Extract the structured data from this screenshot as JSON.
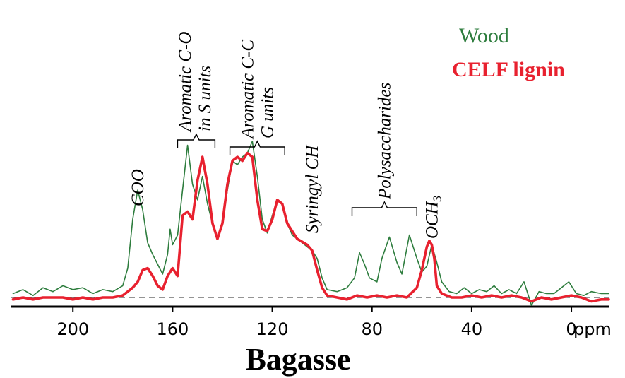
{
  "chart_data": {
    "type": "line",
    "title": "Bagasse",
    "xlabel": "ppm",
    "ylabel": "",
    "x_reversed": true,
    "xlim": [
      225,
      -15
    ],
    "ylim": [
      -0.05,
      1.05
    ],
    "baseline_dashed": true,
    "legend_position": "top-right",
    "x_ticks": [
      {
        "value": 200,
        "label": "200"
      },
      {
        "value": 160,
        "label": "160"
      },
      {
        "value": 120,
        "label": "120"
      },
      {
        "value": 80,
        "label": "80"
      },
      {
        "value": 40,
        "label": "40"
      },
      {
        "value": 0,
        "label": "0"
      }
    ],
    "annotations": [
      {
        "key": "coo",
        "text": "COO",
        "x": 174,
        "bracket": null
      },
      {
        "key": "aroS",
        "lines": [
          "Aromatic C-O",
          "in S units"
        ],
        "x": 151,
        "bracket": [
          158,
          143
        ]
      },
      {
        "key": "aroG",
        "lines": [
          "Aromatic C-C",
          "G units"
        ],
        "x": 126,
        "bracket": [
          137,
          115
        ]
      },
      {
        "key": "syr",
        "text": "Syringyl CH",
        "x": 104,
        "bracket": null
      },
      {
        "key": "poly",
        "text": "Polysaccharides",
        "x": 75,
        "bracket": [
          88,
          62
        ]
      },
      {
        "key": "och3",
        "text": "OCH3",
        "x": 56,
        "bracket": null
      }
    ],
    "series": [
      {
        "name": "Wood",
        "color": "#2e7d3e",
        "points": [
          [
            224,
            0.02
          ],
          [
            220,
            0.04
          ],
          [
            216,
            0.01
          ],
          [
            212,
            0.05
          ],
          [
            208,
            0.03
          ],
          [
            204,
            0.06
          ],
          [
            200,
            0.04
          ],
          [
            196,
            0.05
          ],
          [
            192,
            0.02
          ],
          [
            188,
            0.04
          ],
          [
            184,
            0.03
          ],
          [
            180,
            0.06
          ],
          [
            178,
            0.15
          ],
          [
            176,
            0.4
          ],
          [
            174,
            0.55
          ],
          [
            172,
            0.45
          ],
          [
            170,
            0.28
          ],
          [
            168,
            0.22
          ],
          [
            166,
            0.17
          ],
          [
            164,
            0.12
          ],
          [
            162,
            0.22
          ],
          [
            161,
            0.35
          ],
          [
            160,
            0.27
          ],
          [
            158,
            0.32
          ],
          [
            156,
            0.55
          ],
          [
            154,
            0.78
          ],
          [
            152,
            0.58
          ],
          [
            150,
            0.5
          ],
          [
            148,
            0.62
          ],
          [
            146,
            0.48
          ],
          [
            144,
            0.38
          ],
          [
            142,
            0.3
          ],
          [
            140,
            0.37
          ],
          [
            138,
            0.55
          ],
          [
            136,
            0.7
          ],
          [
            134,
            0.68
          ],
          [
            132,
            0.72
          ],
          [
            130,
            0.74
          ],
          [
            128,
            0.8
          ],
          [
            126,
            0.62
          ],
          [
            124,
            0.4
          ],
          [
            122,
            0.33
          ],
          [
            120,
            0.42
          ],
          [
            118,
            0.5
          ],
          [
            116,
            0.48
          ],
          [
            114,
            0.38
          ],
          [
            112,
            0.32
          ],
          [
            110,
            0.3
          ],
          [
            106,
            0.26
          ],
          [
            104,
            0.24
          ],
          [
            102,
            0.2
          ],
          [
            100,
            0.1
          ],
          [
            98,
            0.04
          ],
          [
            94,
            0.03
          ],
          [
            90,
            0.05
          ],
          [
            87,
            0.1
          ],
          [
            85,
            0.23
          ],
          [
            83,
            0.17
          ],
          [
            81,
            0.1
          ],
          [
            78,
            0.08
          ],
          [
            76,
            0.2
          ],
          [
            73,
            0.31
          ],
          [
            70,
            0.18
          ],
          [
            68,
            0.12
          ],
          [
            65,
            0.32
          ],
          [
            62,
            0.2
          ],
          [
            60,
            0.13
          ],
          [
            58,
            0.16
          ],
          [
            56,
            0.27
          ],
          [
            54,
            0.18
          ],
          [
            52,
            0.08
          ],
          [
            49,
            0.03
          ],
          [
            46,
            0.02
          ],
          [
            43,
            0.05
          ],
          [
            40,
            0.02
          ],
          [
            37,
            0.04
          ],
          [
            34,
            0.03
          ],
          [
            31,
            0.06
          ],
          [
            28,
            0.02
          ],
          [
            25,
            0.04
          ],
          [
            22,
            0.02
          ],
          [
            19,
            0.08
          ],
          [
            16,
            -0.04
          ],
          [
            13,
            0.03
          ],
          [
            10,
            0.02
          ],
          [
            7,
            0.02
          ],
          [
            4,
            0.05
          ],
          [
            1,
            0.08
          ],
          [
            -2,
            0.02
          ],
          [
            -5,
            0.01
          ],
          [
            -8,
            0.03
          ],
          [
            -12,
            0.02
          ],
          [
            -15,
            0.02
          ]
        ]
      },
      {
        "name": "CELF lignin",
        "color": "#e8212f",
        "points": [
          [
            224,
            -0.01
          ],
          [
            220,
            0.0
          ],
          [
            216,
            -0.01
          ],
          [
            212,
            0.0
          ],
          [
            208,
            0.0
          ],
          [
            204,
            0.0
          ],
          [
            200,
            -0.01
          ],
          [
            196,
            0.0
          ],
          [
            192,
            -0.01
          ],
          [
            188,
            0.0
          ],
          [
            184,
            0.0
          ],
          [
            180,
            0.01
          ],
          [
            176,
            0.05
          ],
          [
            174,
            0.08
          ],
          [
            172,
            0.14
          ],
          [
            170,
            0.15
          ],
          [
            168,
            0.11
          ],
          [
            166,
            0.06
          ],
          [
            164,
            0.04
          ],
          [
            162,
            0.11
          ],
          [
            160,
            0.15
          ],
          [
            158,
            0.11
          ],
          [
            156,
            0.42
          ],
          [
            154,
            0.44
          ],
          [
            152,
            0.4
          ],
          [
            150,
            0.6
          ],
          [
            148,
            0.72
          ],
          [
            146,
            0.58
          ],
          [
            144,
            0.38
          ],
          [
            142,
            0.3
          ],
          [
            140,
            0.38
          ],
          [
            138,
            0.58
          ],
          [
            136,
            0.7
          ],
          [
            134,
            0.72
          ],
          [
            132,
            0.7
          ],
          [
            130,
            0.74
          ],
          [
            128,
            0.72
          ],
          [
            126,
            0.5
          ],
          [
            124,
            0.35
          ],
          [
            122,
            0.34
          ],
          [
            120,
            0.4
          ],
          [
            118,
            0.5
          ],
          [
            116,
            0.48
          ],
          [
            114,
            0.38
          ],
          [
            112,
            0.34
          ],
          [
            110,
            0.3
          ],
          [
            106,
            0.27
          ],
          [
            104,
            0.24
          ],
          [
            102,
            0.14
          ],
          [
            100,
            0.05
          ],
          [
            98,
            0.01
          ],
          [
            94,
            0.0
          ],
          [
            90,
            -0.01
          ],
          [
            86,
            0.01
          ],
          [
            82,
            0.0
          ],
          [
            78,
            0.01
          ],
          [
            74,
            0.0
          ],
          [
            70,
            0.01
          ],
          [
            66,
            0.0
          ],
          [
            62,
            0.05
          ],
          [
            60,
            0.14
          ],
          [
            58,
            0.26
          ],
          [
            57,
            0.29
          ],
          [
            56,
            0.27
          ],
          [
            55,
            0.2
          ],
          [
            54,
            0.06
          ],
          [
            52,
            0.02
          ],
          [
            48,
            0.0
          ],
          [
            44,
            0.0
          ],
          [
            40,
            0.01
          ],
          [
            36,
            0.0
          ],
          [
            32,
            0.01
          ],
          [
            28,
            0.0
          ],
          [
            24,
            0.01
          ],
          [
            20,
            0.0
          ],
          [
            16,
            -0.02
          ],
          [
            12,
            0.0
          ],
          [
            8,
            -0.01
          ],
          [
            4,
            0.0
          ],
          [
            0,
            0.01
          ],
          [
            -4,
            0.0
          ],
          [
            -8,
            -0.02
          ],
          [
            -12,
            -0.01
          ],
          [
            -15,
            -0.01
          ]
        ]
      }
    ]
  }
}
